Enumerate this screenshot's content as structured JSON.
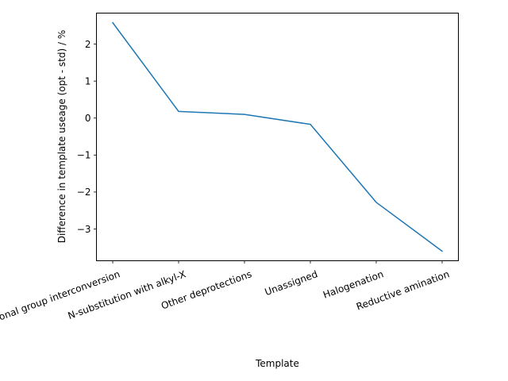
{
  "chart_data": {
    "type": "line",
    "title": "",
    "xlabel": "Template",
    "ylabel": "Difference in template useage (opt - std) / %",
    "categories": [
      "Other functional group interconversion",
      "N-substitution with alkyl-X",
      "Other deprotections",
      "Unassigned",
      "Halogenation",
      "Reductive amination"
    ],
    "series": [
      {
        "values": [
          2.58,
          0.18,
          0.1,
          -0.17,
          -2.28,
          -3.6
        ],
        "color": "#1f77b4"
      }
    ],
    "yticks": [
      2,
      1,
      0,
      -1,
      -2,
      -3
    ],
    "ytick_labels": [
      "2",
      "1",
      "0",
      "−1",
      "−2",
      "−3"
    ],
    "ylim": [
      -3.86,
      2.84
    ],
    "grid": false,
    "legend": "none"
  }
}
